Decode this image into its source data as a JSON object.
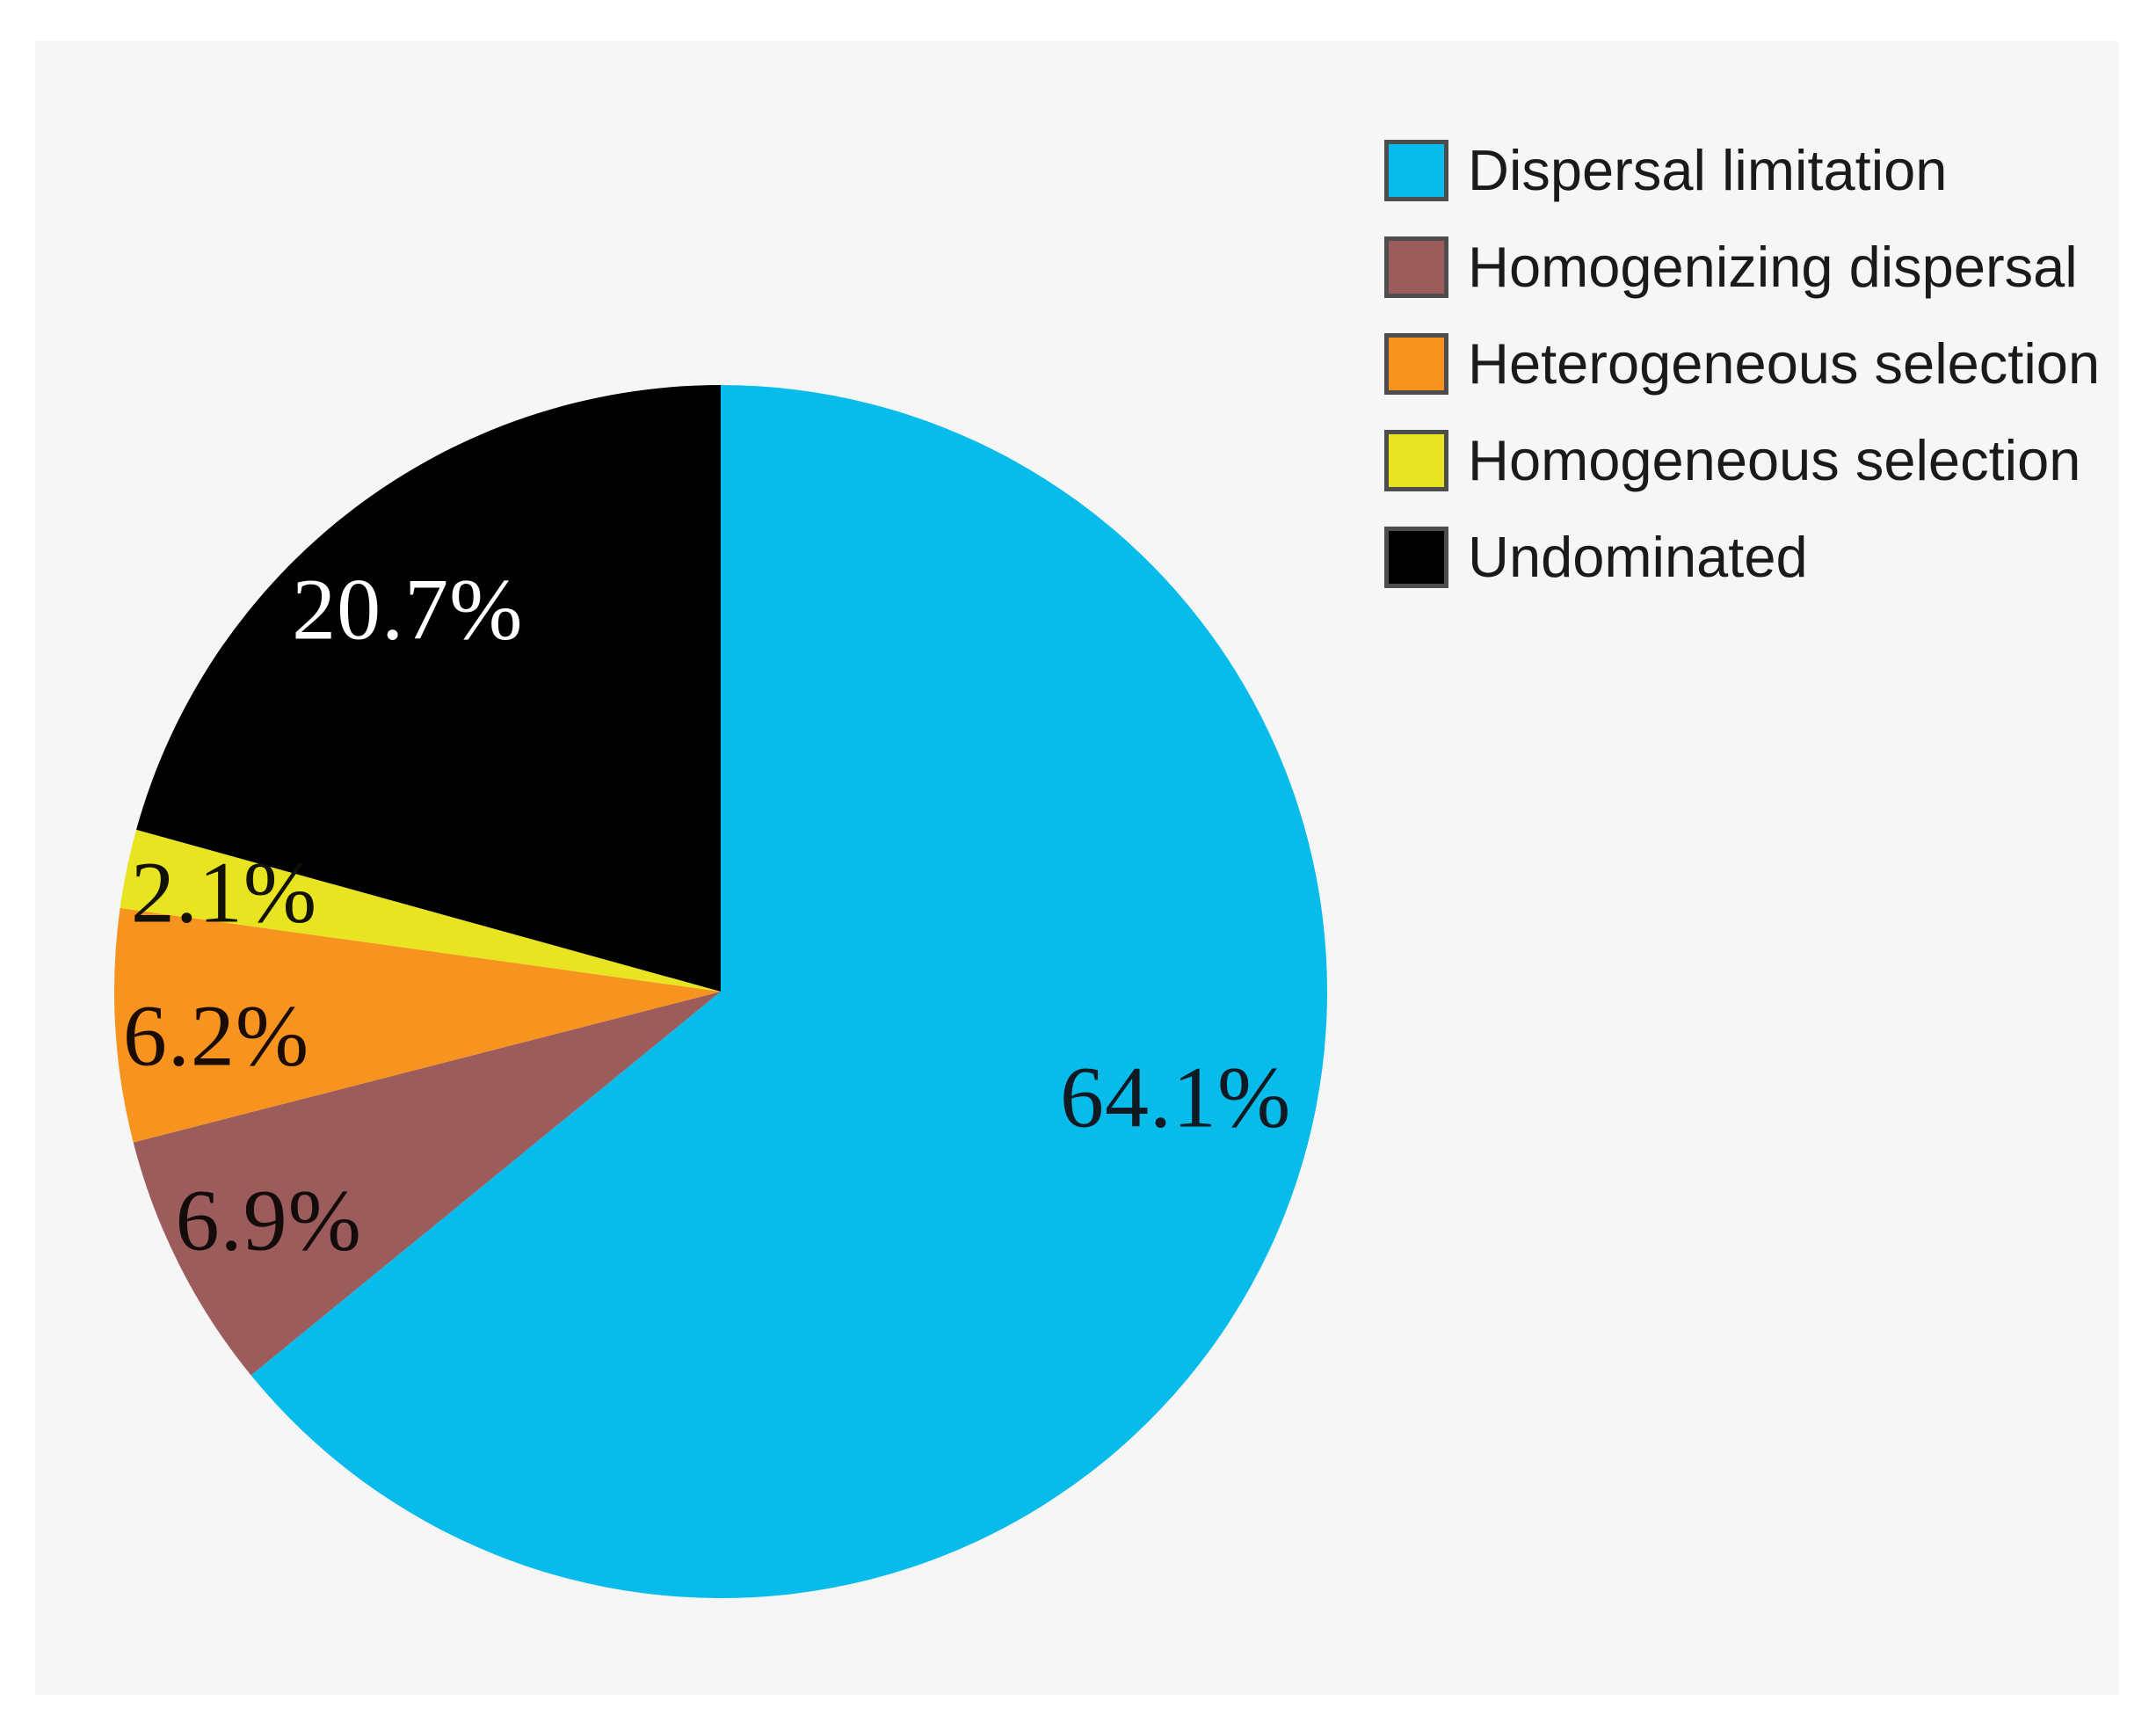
{
  "figure": {
    "page_bg": "#ffffff",
    "panel_bg": "#f6f6f6"
  },
  "chart_data": {
    "type": "pie",
    "title": "",
    "units": "percent",
    "direction": "clockwise",
    "start_angle_deg": 0,
    "legend_position": "top-right",
    "legend_swatch_border_color": "#4d4d4d",
    "legend_text_color": "#1a1a1a",
    "slices": [
      {
        "label": "Dispersal limitation",
        "value": 64.1,
        "display": "64.1%",
        "color": "#07bcea",
        "label_color": "#111a22",
        "label_angle_deg": 103,
        "label_r_frac": 0.77
      },
      {
        "label": "Homogenizing dispersal",
        "value": 6.9,
        "display": "6.9%",
        "color": "#9d5c5c",
        "label_color": "#140b0b",
        "label_angle_deg": 243.2,
        "label_r_frac": 0.835
      },
      {
        "label": "Heterogeneous selection",
        "value": 6.2,
        "display": "6.2%",
        "color": "#f79420",
        "label_color": "#1a0c03",
        "label_angle_deg": 265,
        "label_r_frac": 0.835
      },
      {
        "label": "Homogeneous selection",
        "value": 2.1,
        "display": "2.1%",
        "color": "#e8e421",
        "label_color": "#111108",
        "label_angle_deg": 281.3,
        "label_r_frac": 0.835
      },
      {
        "label": "Undominated",
        "value": 20.7,
        "display": "20.7%",
        "color": "#000000",
        "label_color": "#ffffff",
        "label_angle_deg": 320.7,
        "label_r_frac": 0.815
      }
    ]
  }
}
